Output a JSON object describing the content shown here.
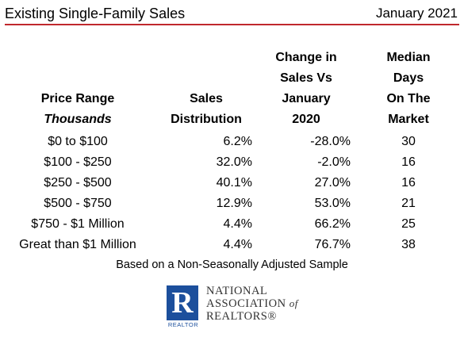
{
  "header": {
    "title": "Existing Single-Family Sales",
    "date": "January 2021",
    "rule_color": "#c0282d"
  },
  "chart_data": {
    "type": "table",
    "columns": [
      {
        "lines": [
          "Price Range",
          "Thousands"
        ]
      },
      {
        "lines": [
          "Sales",
          "Distribution"
        ]
      },
      {
        "lines": [
          "Change in",
          "Sales Vs",
          "January",
          "2020"
        ]
      },
      {
        "lines": [
          "Median",
          "Days",
          "On The",
          "Market"
        ]
      }
    ],
    "rows": [
      {
        "range": "$0 to $100",
        "distribution": "6.2%",
        "change": "-28.0%",
        "days": "30"
      },
      {
        "range": "$100 - $250",
        "distribution": "32.0%",
        "change": "-2.0%",
        "days": "16"
      },
      {
        "range": "$250 - $500",
        "distribution": "40.1%",
        "change": "27.0%",
        "days": "16"
      },
      {
        "range": "$500 - $750",
        "distribution": "12.9%",
        "change": "53.0%",
        "days": "21"
      },
      {
        "range": "$750 - $1 Million",
        "distribution": "4.4%",
        "change": "66.2%",
        "days": "25"
      },
      {
        "range": "Great than $1 Million",
        "distribution": "4.4%",
        "change": "76.7%",
        "days": "38"
      }
    ]
  },
  "note": "Based on a Non-Seasonally Adjusted Sample",
  "logo": {
    "mark": "R",
    "caption": "REALTOR",
    "line1": "NATIONAL",
    "line2": "ASSOCIATION",
    "line2_suffix": "of",
    "line3": "REALTORS®",
    "color": "#1c4f9c"
  }
}
